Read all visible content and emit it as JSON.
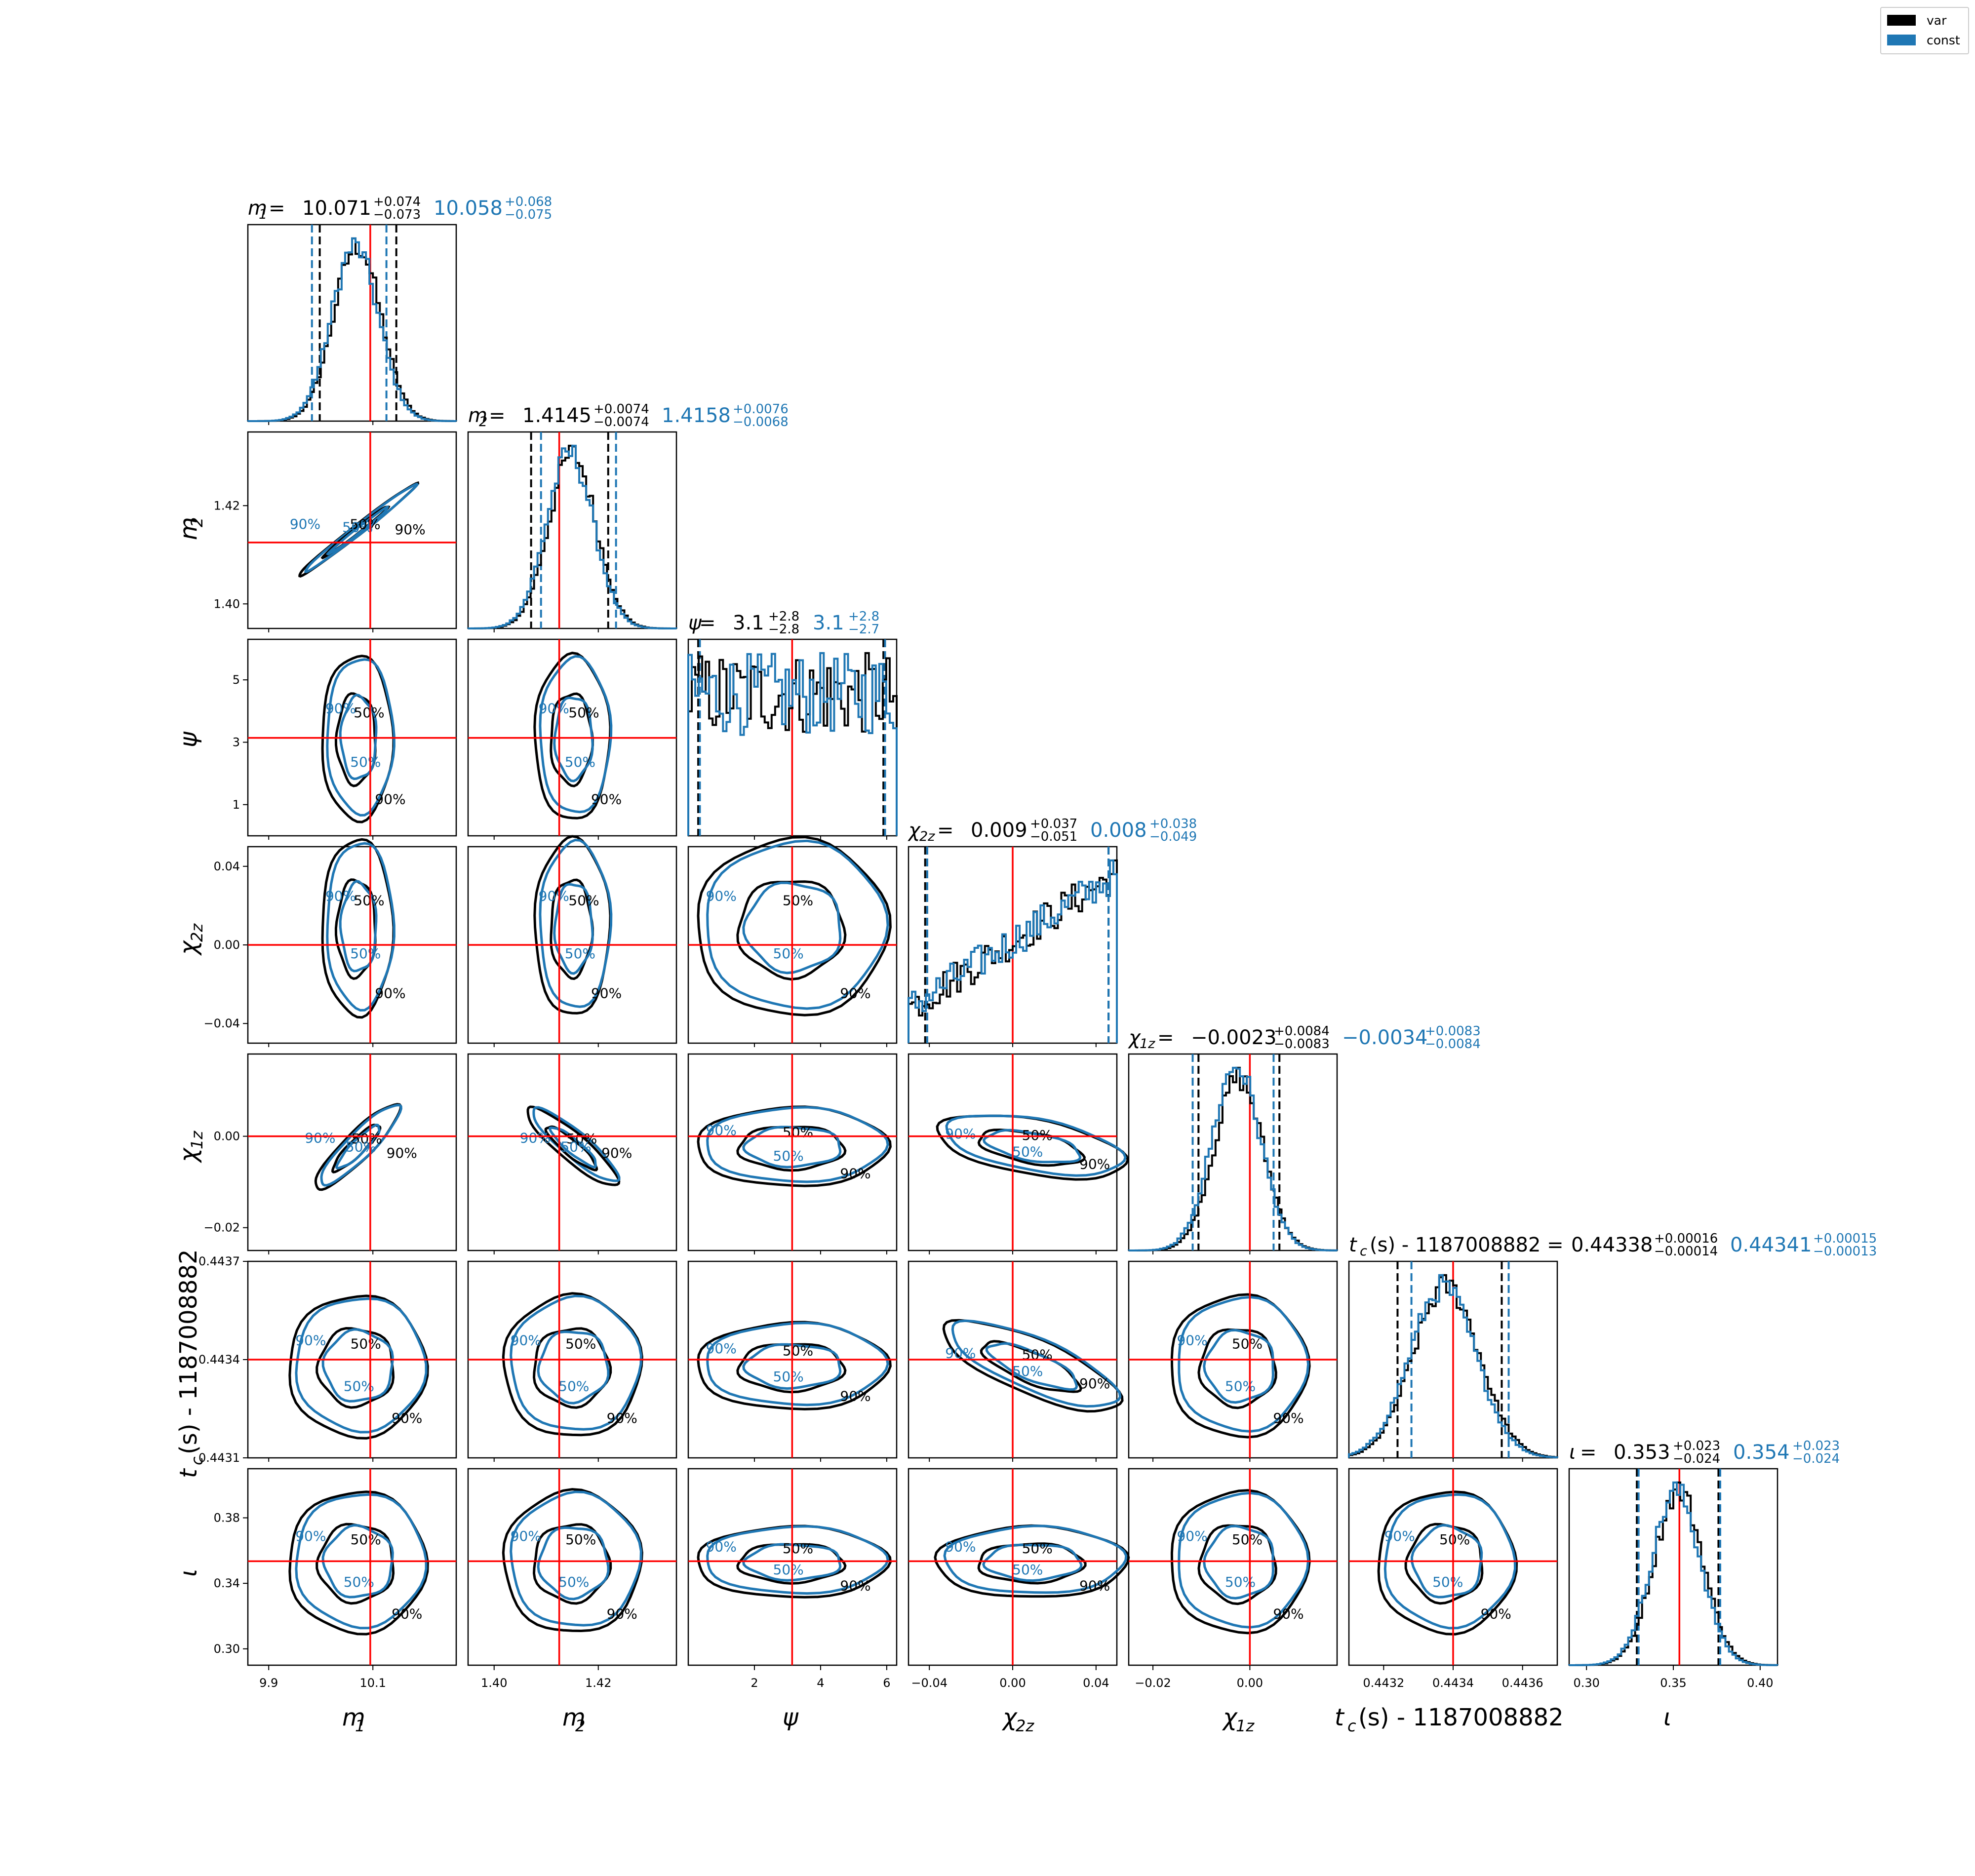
{
  "legend": [
    {
      "label": "var",
      "color": "#000000"
    },
    {
      "label": "const",
      "color": "#1f77b4"
    }
  ],
  "chart_data": {
    "type": "corner",
    "colors": {
      "var": "#000000",
      "const": "#1f77b4",
      "truth": "#ff0000"
    },
    "parameters": [
      {
        "id": "m1",
        "xlabel": "m",
        "sub": "1",
        "italic": true,
        "ticks": [
          9.9,
          10.1
        ],
        "tick_labels": [
          "9.9",
          "10.1"
        ],
        "range": [
          9.86,
          10.26
        ],
        "truth": 10.095,
        "mode": 10.07,
        "sigma": 0.045,
        "show_ylabel": false,
        "title": {
          "prefix": "m",
          "sub": "1",
          "equals": " = ",
          "var": {
            "value": "10.071",
            "plus": "+0.074",
            "minus": "−0.073"
          },
          "const": {
            "value": "10.058",
            "plus": "+0.068",
            "minus": "−0.075"
          }
        },
        "quantiles_var": [
          9.998,
          10.145
        ],
        "quantiles_const": [
          9.983,
          10.126
        ]
      },
      {
        "id": "m2",
        "xlabel": "m",
        "sub": "2",
        "italic": true,
        "ticks": [
          1.4,
          1.42
        ],
        "tick_labels": [
          "1.40",
          "1.42"
        ],
        "range": [
          1.395,
          1.435
        ],
        "yticks": [
          1.4,
          1.42
        ],
        "ytick_labels": [
          "1.40",
          "1.42"
        ],
        "truth": 1.4125,
        "mode": 1.415,
        "sigma": 0.0045,
        "show_ylabel": true,
        "title": {
          "prefix": "m",
          "sub": "2",
          "equals": " = ",
          "var": {
            "value": "1.4145",
            "plus": "+0.0074",
            "minus": "−0.0074"
          },
          "const": {
            "value": "1.4158",
            "plus": "+0.0076",
            "minus": "−0.0068"
          }
        },
        "quantiles_var": [
          1.4071,
          1.4219
        ],
        "quantiles_const": [
          1.409,
          1.4234
        ]
      },
      {
        "id": "psi",
        "xlabel": "ψ",
        "sub": "",
        "italic": true,
        "ticks": [
          2,
          4,
          6
        ],
        "tick_labels": [
          "2",
          "4",
          "6"
        ],
        "range": [
          0,
          6.3
        ],
        "yticks": [
          1,
          3,
          5
        ],
        "ytick_labels": [
          "1",
          "3",
          "5"
        ],
        "truth": 3.14,
        "mode": 3.14,
        "sigma": 0,
        "show_ylabel": true,
        "title": {
          "prefix": "ψ",
          "sub": "",
          "equals": " = ",
          "var": {
            "value": "3.1",
            "plus": "+2.8",
            "minus": "−2.8"
          },
          "const": {
            "value": "3.1",
            "plus": "+2.8",
            "minus": "−2.7"
          }
        },
        "quantiles_var": [
          0.3,
          5.9
        ],
        "quantiles_const": [
          0.35,
          5.95
        ]
      },
      {
        "id": "chi2z",
        "xlabel": "χ",
        "sub": "2z",
        "italic": true,
        "ticks": [
          -0.04,
          0.0,
          0.04
        ],
        "tick_labels": [
          "−0.04",
          "0.00",
          "0.04"
        ],
        "range": [
          -0.05,
          0.05
        ],
        "yticks": [
          -0.04,
          0.0,
          0.04
        ],
        "ytick_labels": [
          "−0.04",
          "0.00",
          "0.04"
        ],
        "truth": 0.0,
        "mode": 0.009,
        "sigma": 0,
        "show_ylabel": true,
        "title": {
          "prefix": "χ",
          "sub": "2z",
          "equals": " = ",
          "var": {
            "value": "0.009",
            "plus": "+0.037",
            "minus": "−0.051"
          },
          "const": {
            "value": "0.008",
            "plus": "+0.038",
            "minus": "−0.049"
          }
        },
        "quantiles_var": [
          -0.042,
          0.046
        ],
        "quantiles_const": [
          -0.041,
          0.046
        ]
      },
      {
        "id": "chi1z",
        "xlabel": "χ",
        "sub": "1z",
        "italic": true,
        "ticks": [
          -0.02,
          0.0
        ],
        "tick_labels": [
          "−0.02",
          "0.00"
        ],
        "range": [
          -0.025,
          0.018
        ],
        "yticks": [
          -0.02,
          0.0
        ],
        "ytick_labels": [
          "−0.02",
          "0.00"
        ],
        "truth": 0.0,
        "mode": -0.0023,
        "sigma": 0.005,
        "show_ylabel": true,
        "title": {
          "prefix": "χ",
          "sub": "1z",
          "equals": " = ",
          "var": {
            "value": "−0.0023",
            "plus": "+0.0084",
            "minus": "−0.0083"
          },
          "const": {
            "value": "−0.0034",
            "plus": "+0.0083",
            "minus": "−0.0084"
          }
        },
        "quantiles_var": [
          -0.0106,
          0.0061
        ],
        "quantiles_const": [
          -0.0118,
          0.0049
        ]
      },
      {
        "id": "tc",
        "xlabel": "t",
        "sub": "c",
        "suffix": " (s) - 1187008882",
        "italic": true,
        "ticks": [
          0.4432,
          0.4434,
          0.4436
        ],
        "tick_labels": [
          "0.4432",
          "0.4434",
          "0.4436"
        ],
        "range": [
          0.4431,
          0.4437
        ],
        "yticks": [
          0.4431,
          0.4434,
          0.4437
        ],
        "ytick_labels": [
          "0.4431",
          "0.4434",
          "0.4437"
        ],
        "truth": 0.4434,
        "mode": 0.44338,
        "sigma": 9.5e-05,
        "show_ylabel": true,
        "title": {
          "prefix": "t",
          "sub": "c",
          "equals": " (s) - 1187008882 = ",
          "var": {
            "value": "0.44338",
            "plus": "+0.00016",
            "minus": "−0.00014"
          },
          "const": {
            "value": "0.44341",
            "plus": "+0.00015",
            "minus": "−0.00013"
          }
        },
        "quantiles_var": [
          0.44324,
          0.44354
        ],
        "quantiles_const": [
          0.44328,
          0.44356
        ]
      },
      {
        "id": "iota",
        "xlabel": "ι",
        "sub": "",
        "italic": true,
        "ticks": [
          0.3,
          0.35,
          0.4
        ],
        "tick_labels": [
          "0.30",
          "0.35",
          "0.40"
        ],
        "range": [
          0.29,
          0.41
        ],
        "yticks": [
          0.3,
          0.34,
          0.38
        ],
        "ytick_labels": [
          "0.30",
          "0.34",
          "0.38"
        ],
        "truth": 0.3535,
        "mode": 0.353,
        "sigma": 0.014,
        "show_ylabel": true,
        "title": {
          "prefix": "ι",
          "sub": "",
          "equals": " = ",
          "var": {
            "value": "0.353",
            "plus": "+0.023",
            "minus": "−0.024"
          },
          "const": {
            "value": "0.354",
            "plus": "+0.023",
            "minus": "−0.024"
          }
        },
        "quantiles_var": [
          0.329,
          0.376
        ],
        "quantiles_const": [
          0.33,
          0.377
        ]
      }
    ],
    "contour_levels": [
      "50%",
      "90%"
    ]
  }
}
